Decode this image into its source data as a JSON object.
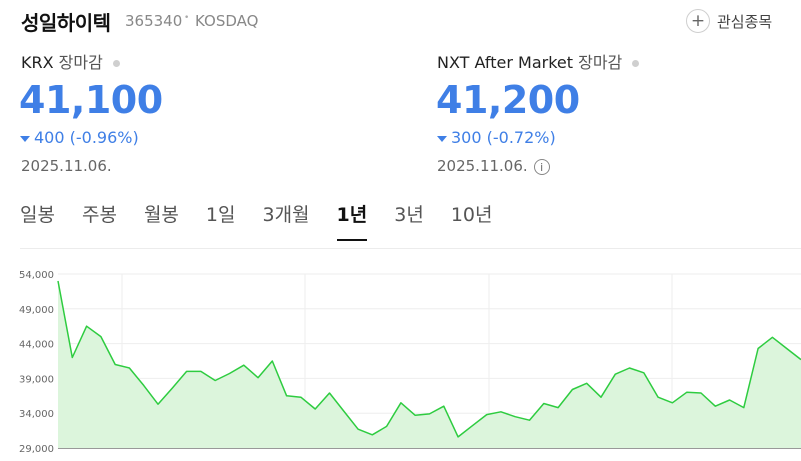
{
  "header": {
    "name": "성일하이텍",
    "code": "365340",
    "separator": "•",
    "market": "KOSDAQ",
    "watch_label": "관심종목",
    "watch_icon": "plus-icon"
  },
  "krx": {
    "label": "KRX",
    "sub": "장마감",
    "price": "41,100",
    "change": "400 (-0.96%)",
    "date": "2025.11.06."
  },
  "nxt": {
    "label": "NXT After Market",
    "sub": "장마감",
    "price": "41,200",
    "change": "300 (-0.72%)",
    "date": "2025.11.06.",
    "info_icon": "info-icon"
  },
  "tabs": [
    {
      "label": "일봉"
    },
    {
      "label": "주봉"
    },
    {
      "label": "월봉"
    },
    {
      "label": "1일"
    },
    {
      "label": "3개월"
    },
    {
      "label": "1년",
      "active": true
    },
    {
      "label": "3년"
    },
    {
      "label": "10년"
    }
  ],
  "colors": {
    "down": "#3f7fe6",
    "line": "#2ecc40",
    "fill": "#dcf5dc"
  },
  "chart_data": {
    "type": "area",
    "y_ticks": [
      "54,000",
      "49,000",
      "44,000",
      "39,000",
      "34,000",
      "29,000"
    ],
    "ylim": [
      29000,
      54000
    ],
    "grid": true,
    "values": [
      53000,
      42000,
      46500,
      45000,
      41000,
      40500,
      38000,
      35300,
      37600,
      40000,
      40000,
      38700,
      39700,
      40900,
      39100,
      41500,
      36500,
      36300,
      34600,
      36900,
      34300,
      31700,
      30900,
      32100,
      35500,
      33700,
      33900,
      35000,
      30600,
      32200,
      33800,
      34200,
      33500,
      33000,
      35400,
      34800,
      37400,
      38300,
      36300,
      39600,
      40500,
      39800,
      36300,
      35500,
      37000,
      36900,
      35000,
      35900,
      34800,
      43300,
      44900,
      43300,
      41700
    ]
  }
}
